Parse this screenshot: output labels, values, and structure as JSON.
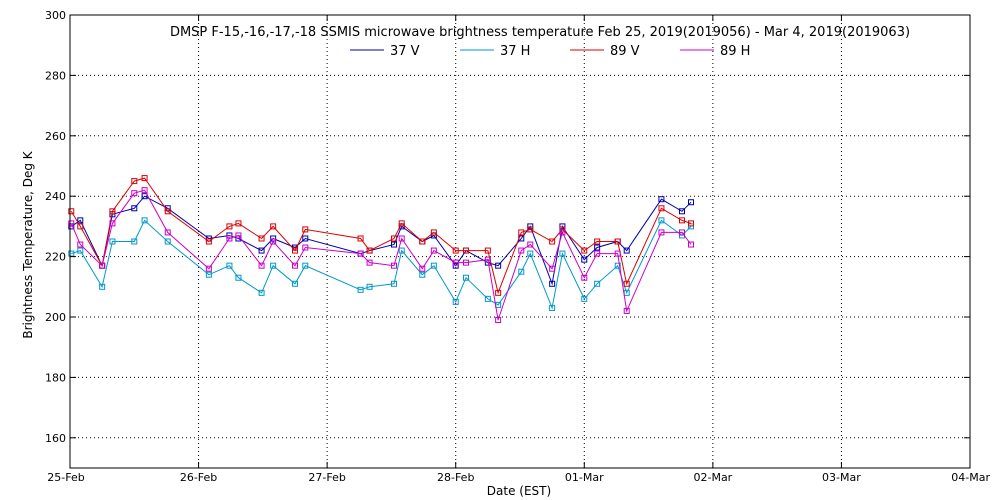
{
  "chart_data": {
    "type": "line",
    "title": "DMSP F-15,-16,-17,-18 SSMIS microwave brightness temperature Feb 25, 2019(2019056) - Mar  4, 2019(2019063)",
    "xlabel": "Date (EST)",
    "ylabel": "Brightness Temperature, Deg K",
    "xlim": [
      0,
      7
    ],
    "ylim": [
      150,
      300
    ],
    "grid": true,
    "legend_position": "top-center",
    "x_ticks": [
      {
        "value": 0,
        "label": "25-Feb"
      },
      {
        "value": 1,
        "label": "26-Feb"
      },
      {
        "value": 2,
        "label": "27-Feb"
      },
      {
        "value": 3,
        "label": "28-Feb"
      },
      {
        "value": 4,
        "label": "01-Mar"
      },
      {
        "value": 5,
        "label": "02-Mar"
      },
      {
        "value": 6,
        "label": "03-Mar"
      },
      {
        "value": 7,
        "label": "04-Mar"
      }
    ],
    "y_ticks": [
      160,
      180,
      200,
      220,
      240,
      260,
      280,
      300
    ],
    "series": [
      {
        "name": "37 V",
        "color": "#0000aa",
        "points": [
          [
            0.01,
            230
          ],
          [
            0.08,
            232
          ],
          [
            0.25,
            217
          ],
          [
            0.33,
            234
          ],
          [
            0.5,
            236
          ],
          [
            0.58,
            240
          ],
          [
            0.76,
            236
          ],
          [
            1.08,
            226
          ],
          [
            1.24,
            227
          ],
          [
            1.31,
            226
          ],
          [
            1.49,
            222
          ],
          [
            1.58,
            226
          ],
          [
            1.75,
            223
          ],
          [
            1.83,
            226
          ],
          [
            2.26,
            221
          ],
          [
            2.33,
            222
          ],
          [
            2.52,
            224
          ],
          [
            2.58,
            230
          ],
          [
            2.74,
            225
          ],
          [
            2.83,
            227
          ],
          [
            3.0,
            217
          ],
          [
            3.08,
            222
          ],
          [
            3.25,
            218
          ],
          [
            3.33,
            217
          ],
          [
            3.51,
            226
          ],
          [
            3.58,
            230
          ],
          [
            3.75,
            211
          ],
          [
            3.83,
            230
          ],
          [
            4.0,
            219
          ],
          [
            4.1,
            223
          ],
          [
            4.26,
            225
          ],
          [
            4.33,
            222
          ],
          [
            4.6,
            239
          ],
          [
            4.76,
            235
          ],
          [
            4.83,
            238
          ]
        ]
      },
      {
        "name": "37 H",
        "color": "#0099cc",
        "points": [
          [
            0.01,
            221
          ],
          [
            0.08,
            222
          ],
          [
            0.25,
            210
          ],
          [
            0.33,
            225
          ],
          [
            0.5,
            225
          ],
          [
            0.58,
            232
          ],
          [
            0.76,
            225
          ],
          [
            1.08,
            214
          ],
          [
            1.24,
            217
          ],
          [
            1.31,
            213
          ],
          [
            1.49,
            208
          ],
          [
            1.58,
            217
          ],
          [
            1.75,
            211
          ],
          [
            1.83,
            217
          ],
          [
            2.26,
            209
          ],
          [
            2.33,
            210
          ],
          [
            2.52,
            211
          ],
          [
            2.58,
            222
          ],
          [
            2.74,
            214
          ],
          [
            2.83,
            217
          ],
          [
            3.0,
            205
          ],
          [
            3.08,
            213
          ],
          [
            3.25,
            206
          ],
          [
            3.33,
            204
          ],
          [
            3.51,
            215
          ],
          [
            3.58,
            221
          ],
          [
            3.75,
            203
          ],
          [
            3.83,
            221
          ],
          [
            4.0,
            206
          ],
          [
            4.1,
            211
          ],
          [
            4.26,
            217
          ],
          [
            4.33,
            208
          ],
          [
            4.6,
            232
          ],
          [
            4.76,
            227
          ],
          [
            4.83,
            230
          ]
        ]
      },
      {
        "name": "89 V",
        "color": "#dd0000",
        "points": [
          [
            0.01,
            235
          ],
          [
            0.08,
            230
          ],
          [
            0.25,
            217
          ],
          [
            0.33,
            235
          ],
          [
            0.5,
            245
          ],
          [
            0.58,
            246
          ],
          [
            0.76,
            235
          ],
          [
            1.08,
            225
          ],
          [
            1.24,
            230
          ],
          [
            1.31,
            231
          ],
          [
            1.49,
            226
          ],
          [
            1.58,
            230
          ],
          [
            1.75,
            222
          ],
          [
            1.83,
            229
          ],
          [
            2.26,
            226
          ],
          [
            2.33,
            222
          ],
          [
            2.52,
            226
          ],
          [
            2.58,
            231
          ],
          [
            2.74,
            225
          ],
          [
            2.83,
            228
          ],
          [
            3.0,
            222
          ],
          [
            3.08,
            222
          ],
          [
            3.25,
            222
          ],
          [
            3.33,
            208
          ],
          [
            3.51,
            228
          ],
          [
            3.58,
            229
          ],
          [
            3.75,
            225
          ],
          [
            3.83,
            229
          ],
          [
            4.0,
            222
          ],
          [
            4.1,
            225
          ],
          [
            4.26,
            225
          ],
          [
            4.33,
            211
          ],
          [
            4.6,
            236
          ],
          [
            4.76,
            232
          ],
          [
            4.83,
            231
          ]
        ]
      },
      {
        "name": "89 H",
        "color": "#cc00cc",
        "points": [
          [
            0.01,
            231
          ],
          [
            0.08,
            224
          ],
          [
            0.25,
            217
          ],
          [
            0.33,
            231
          ],
          [
            0.5,
            241
          ],
          [
            0.58,
            242
          ],
          [
            0.76,
            228
          ],
          [
            1.08,
            216
          ],
          [
            1.24,
            226
          ],
          [
            1.31,
            227
          ],
          [
            1.49,
            217
          ],
          [
            1.58,
            225
          ],
          [
            1.75,
            217
          ],
          [
            1.83,
            223
          ],
          [
            2.26,
            221
          ],
          [
            2.33,
            218
          ],
          [
            2.52,
            217
          ],
          [
            2.58,
            226
          ],
          [
            2.74,
            216
          ],
          [
            2.83,
            222
          ],
          [
            3.0,
            218
          ],
          [
            3.08,
            218
          ],
          [
            3.25,
            219
          ],
          [
            3.33,
            199
          ],
          [
            3.51,
            222
          ],
          [
            3.58,
            224
          ],
          [
            3.75,
            216
          ],
          [
            3.83,
            228
          ],
          [
            4.0,
            213
          ],
          [
            4.1,
            221
          ],
          [
            4.26,
            221
          ],
          [
            4.33,
            202
          ],
          [
            4.6,
            228
          ],
          [
            4.76,
            228
          ],
          [
            4.83,
            224
          ]
        ]
      }
    ]
  }
}
